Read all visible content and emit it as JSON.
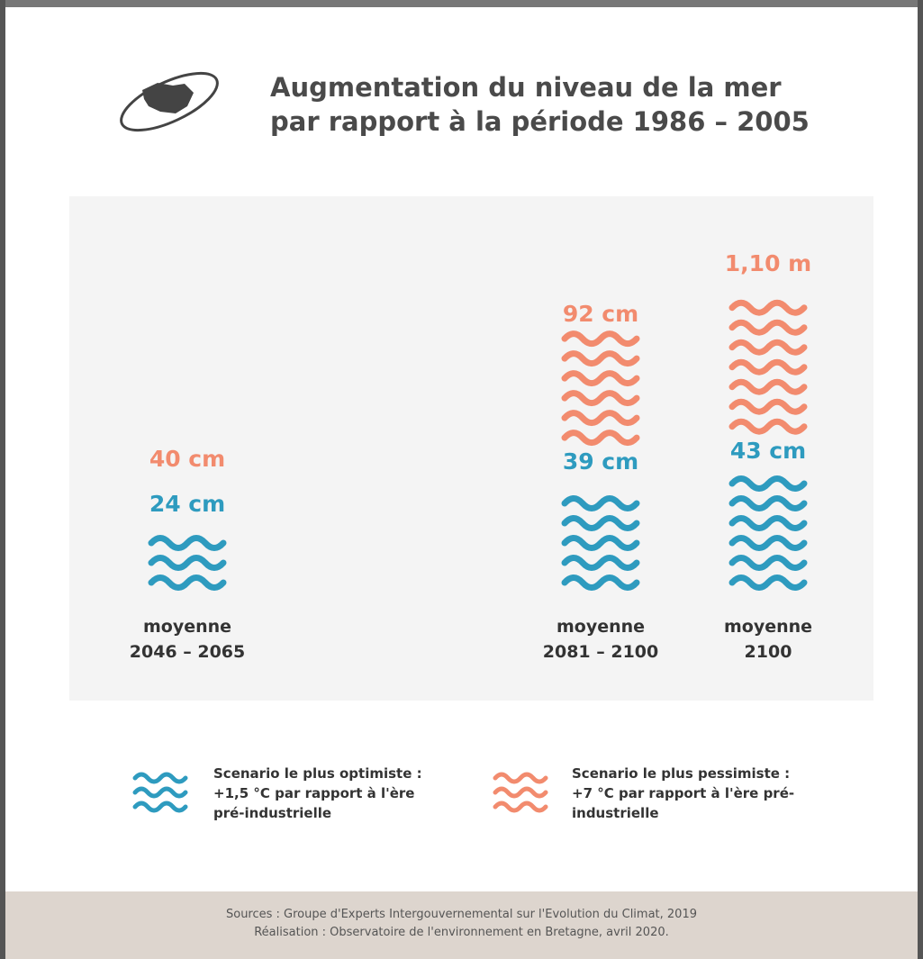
{
  "chart_data": {
    "type": "pictogram",
    "title": [
      "Augmentation du niveau de la mer",
      "par rapport à la période  1986 – 2005"
    ],
    "categories": [
      "moyenne 2046 – 2065",
      "moyenne 2081 – 2100",
      "moyenne 2100"
    ],
    "series": [
      {
        "name": "Scenario le plus optimiste : +1,5 °C par rapport à l'ère pré-industrielle",
        "color": "#2e9bbf",
        "values": [
          24,
          39,
          43
        ],
        "value_labels": [
          "24 cm",
          "39 cm",
          "43 cm"
        ]
      },
      {
        "name": "Scenario le plus pessimiste : +7 °C par rapport à l'ère pré-industrielle",
        "color": "#f28b6e",
        "values": [
          40,
          92,
          110
        ],
        "value_labels": [
          "40 cm",
          "92 cm",
          "1,10 m"
        ]
      }
    ],
    "sources": [
      "Sources : Groupe d'Experts Intergouvernemental sur l'Evolution du Climat, 2019",
      "Réalisation : Observatoire de l'environnement en Bretagne, avril 2020."
    ]
  }
}
